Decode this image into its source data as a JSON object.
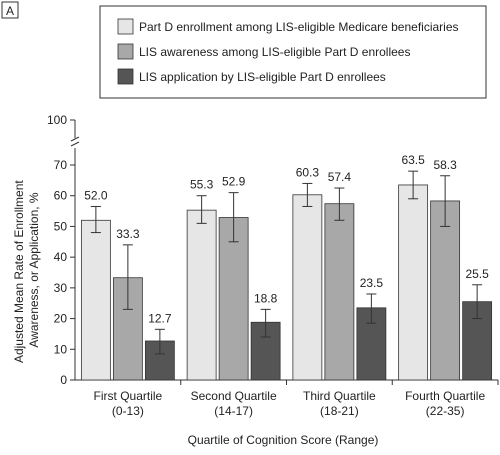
{
  "panel_label": "A",
  "colors": {
    "series": [
      "#e6e6e6",
      "#a8a8a8",
      "#555555"
    ],
    "stroke": "#333333",
    "error_bar": "#333333"
  },
  "chart_data": {
    "type": "bar",
    "xlabel": "Quartile of Cognition Score (Range)",
    "ylabel_lines": [
      "Adjusted Mean Rate of Enrollment",
      "Awareness, or Application, %"
    ],
    "ylim": [
      0,
      70
    ],
    "y_ticks": [
      0,
      10,
      20,
      30,
      40,
      50,
      60,
      70
    ],
    "y_break_tick": 100,
    "axis_break": true,
    "grid": false,
    "legend_position": "top-right",
    "categories": [
      {
        "name": "First Quartile",
        "range": "(0-13)"
      },
      {
        "name": "Second Quartile",
        "range": "(14-17)"
      },
      {
        "name": "Third Quartile",
        "range": "(18-21)"
      },
      {
        "name": "Fourth Quartile",
        "range": "(22-35)"
      }
    ],
    "series": [
      {
        "name": "Part D enrollment among LIS-eligible Medicare beneficiaries",
        "values": [
          52.0,
          55.3,
          60.3,
          63.5
        ],
        "labels": [
          "52.0",
          "55.3",
          "60.3",
          "63.5"
        ],
        "error_low": [
          48.0,
          51.0,
          56.5,
          59.0
        ],
        "error_high": [
          56.5,
          60.0,
          64.0,
          68.0
        ]
      },
      {
        "name": "LIS awareness among LIS-eligible Part D enrollees",
        "values": [
          33.3,
          52.9,
          57.4,
          58.3
        ],
        "labels": [
          "33.3",
          "52.9",
          "57.4",
          "58.3"
        ],
        "error_low": [
          23.0,
          45.0,
          52.0,
          50.0
        ],
        "error_high": [
          44.0,
          61.0,
          62.5,
          66.5
        ]
      },
      {
        "name": "LIS application by LIS-eligible Part D enrollees",
        "values": [
          12.7,
          18.8,
          23.5,
          25.5
        ],
        "labels": [
          "12.7",
          "18.8",
          "23.5",
          "25.5"
        ],
        "error_low": [
          8.5,
          14.0,
          18.5,
          20.0
        ],
        "error_high": [
          16.5,
          23.0,
          28.0,
          31.0
        ]
      }
    ]
  }
}
